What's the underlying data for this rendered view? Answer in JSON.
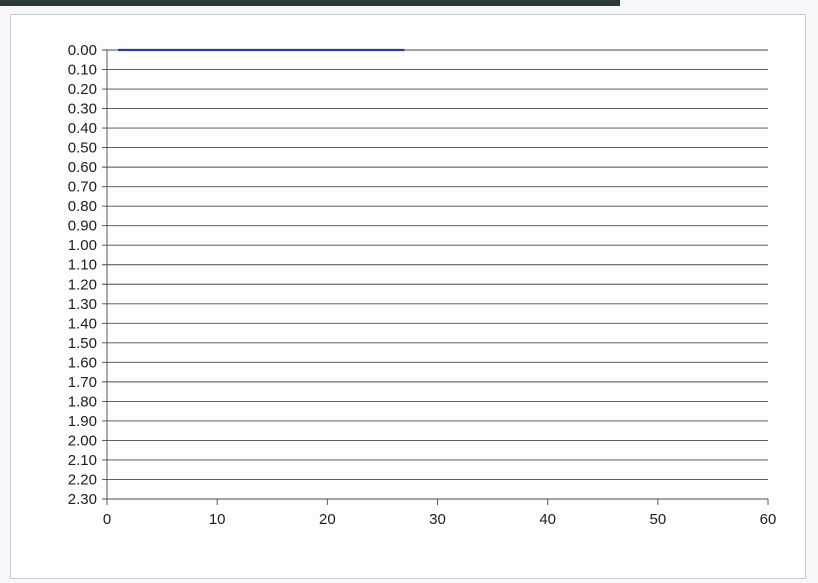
{
  "chart_data": {
    "type": "line",
    "title": "",
    "xlabel": "",
    "ylabel": "",
    "y_reversed": true,
    "grid": true,
    "xlim": [
      0,
      60
    ],
    "ylim": [
      0,
      2.3
    ],
    "x_ticks": [
      "0",
      "10",
      "20",
      "30",
      "40",
      "50",
      "60"
    ],
    "y_ticks": [
      "0.00",
      "0.10",
      "0.20",
      "0.30",
      "0.40",
      "0.50",
      "0.60",
      "0.70",
      "0.80",
      "0.90",
      "1.00",
      "1.10",
      "1.20",
      "1.30",
      "1.40",
      "1.50",
      "1.60",
      "1.70",
      "1.80",
      "1.90",
      "2.00",
      "2.10",
      "2.20",
      "2.30"
    ],
    "series": [
      {
        "color": "#2f3f8f",
        "x": [
          1,
          27
        ],
        "y": [
          0,
          0
        ]
      }
    ]
  }
}
